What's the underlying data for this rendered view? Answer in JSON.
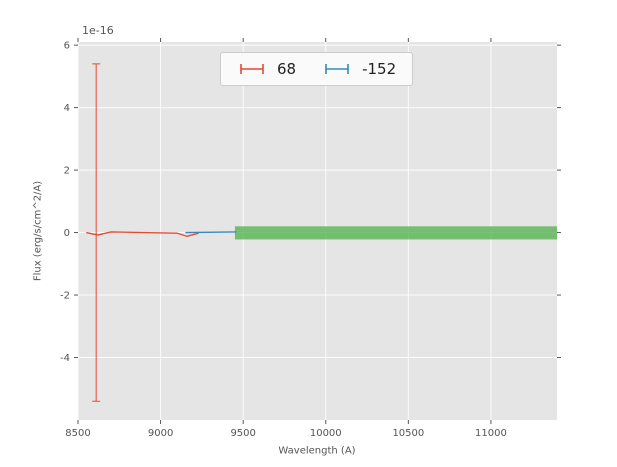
{
  "colors": {
    "figure_bg": "#ffffff",
    "plot_bg": "#e5e5e5",
    "grid": "#ffffff",
    "tick": "#555555",
    "text": "#555555",
    "legend_bg": "#fafafa"
  },
  "chart_data": {
    "type": "line",
    "title": "",
    "xlabel": "Wavelength (A)",
    "ylabel": "Flux (erg/s/cm^2/A)",
    "offset_text": "1e-16",
    "xlim": [
      8500,
      11400
    ],
    "ylim": [
      -6.0,
      6.1
    ],
    "xticks": [
      8500,
      9000,
      9500,
      10000,
      10500,
      11000
    ],
    "yticks": [
      6,
      4,
      2,
      0,
      -2,
      -4
    ],
    "grid": true,
    "legend_position": "upper center",
    "legend": [
      {
        "label": "68",
        "color": "#e24a33"
      },
      {
        "label": "-152",
        "color": "#348abd"
      }
    ],
    "series": [
      {
        "name": "68",
        "color": "#e24a33",
        "style": "errorbar-line",
        "points": [
          [
            8550,
            0
          ],
          [
            8620,
            -0.08
          ],
          [
            8700,
            0.02
          ],
          [
            9100,
            -0.02
          ],
          [
            9160,
            -0.12
          ],
          [
            9230,
            -0.02
          ]
        ],
        "errorbars": [
          {
            "x": 8610,
            "y": 0,
            "yerr": 5.4
          }
        ]
      },
      {
        "name": "-152",
        "color": "#348abd",
        "style": "line",
        "points": [
          [
            9150,
            0.0
          ],
          [
            9460,
            0.02
          ]
        ],
        "errorbars": []
      }
    ],
    "band": {
      "x0": 9450,
      "x1": 11400,
      "y0": -0.22,
      "y1": 0.2,
      "color": "#4daf4a",
      "opacity": 0.75
    }
  }
}
